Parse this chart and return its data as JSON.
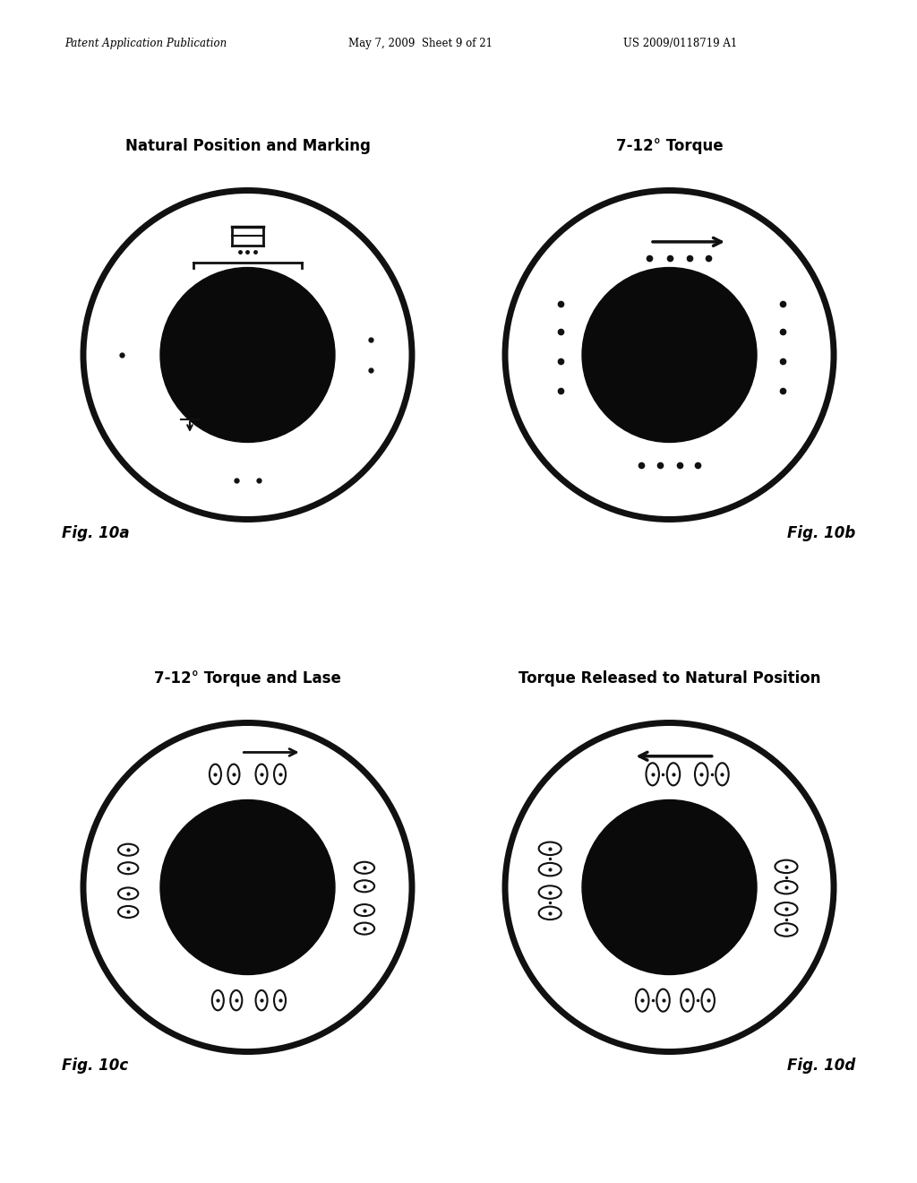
{
  "page_header_left": "Patent Application Publication",
  "page_header_mid": "May 7, 2009  Sheet 9 of 21",
  "page_header_right": "US 2009/0118719 A1",
  "fig_titles": [
    "Natural Position and Marking",
    "7-12° Torque",
    "7-12° Torque and Lase",
    "Torque Released to Natural Position"
  ],
  "fig_labels": [
    "Fig. 10a",
    "Fig. 10b",
    "Fig. 10c",
    "Fig. 10d"
  ],
  "bg_color": "#ffffff",
  "lc": "#111111"
}
